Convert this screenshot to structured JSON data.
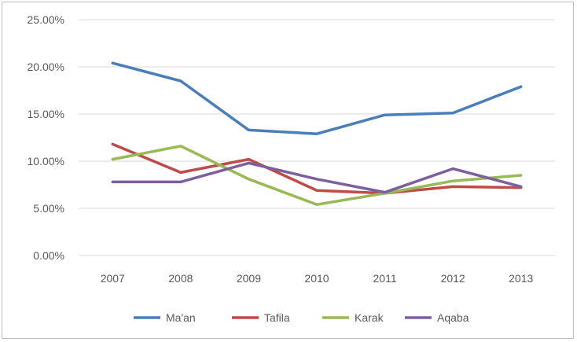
{
  "chart_data": {
    "type": "line",
    "title": "",
    "xlabel": "",
    "ylabel": "",
    "categories": [
      "2007",
      "2008",
      "2009",
      "2010",
      "2011",
      "2012",
      "2013"
    ],
    "y_ticks": [
      "0.00%",
      "5.00%",
      "10.00%",
      "15.00%",
      "20.00%",
      "25.00%"
    ],
    "ylim": [
      0,
      25
    ],
    "grid": "horizontal",
    "legend_position": "bottom",
    "series": [
      {
        "name": "Ma'an",
        "color": "#4a7ebb",
        "values": [
          20.4,
          18.5,
          13.3,
          12.9,
          14.9,
          15.1,
          17.9
        ]
      },
      {
        "name": "Tafila",
        "color": "#be4b48",
        "values": [
          11.8,
          8.8,
          10.2,
          6.9,
          6.6,
          7.3,
          7.2
        ]
      },
      {
        "name": "Karak",
        "color": "#98b954",
        "values": [
          10.2,
          11.6,
          8.1,
          5.4,
          6.6,
          7.9,
          8.5
        ]
      },
      {
        "name": "Aqaba",
        "color": "#7d5fa0",
        "values": [
          7.8,
          7.8,
          9.8,
          8.1,
          6.7,
          9.2,
          7.3
        ]
      }
    ]
  }
}
